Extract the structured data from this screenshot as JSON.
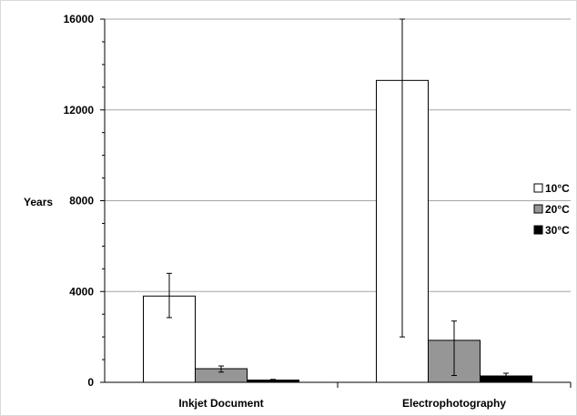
{
  "chart_data": {
    "type": "bar",
    "ylabel": "Years",
    "xlabel": "",
    "ylim": [
      0,
      16000
    ],
    "yticks": [
      0,
      4000,
      8000,
      12000,
      16000
    ],
    "grid": true,
    "legend_position": "right",
    "categories": [
      "Inkjet Document",
      "Electrophotography"
    ],
    "series": [
      {
        "name": "10°C",
        "color": "#ffffff",
        "values": [
          3800,
          13300
        ],
        "error_low": [
          2850,
          2000
        ],
        "error_high": [
          4800,
          16000
        ]
      },
      {
        "name": "20°C",
        "color": "#969696",
        "values": [
          600,
          1850
        ],
        "error_low": [
          450,
          300
        ],
        "error_high": [
          720,
          2700
        ]
      },
      {
        "name": "30°C",
        "color": "#000000",
        "values": [
          100,
          280
        ],
        "error_low": [
          60,
          180
        ],
        "error_high": [
          130,
          400
        ]
      }
    ]
  }
}
